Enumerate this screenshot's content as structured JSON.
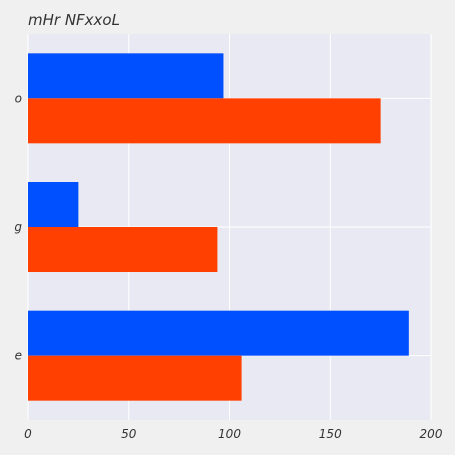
{
  "chart_data": {
    "type": "bar",
    "orientation": "horizontal",
    "title": "mHr NFxxoL",
    "xlabel": "",
    "ylabel": "",
    "categories": [
      "o",
      "g",
      "e"
    ],
    "series": [
      {
        "values": [
          97,
          25,
          189
        ],
        "color": "#0050ff"
      },
      {
        "values": [
          175,
          94,
          106
        ],
        "color": "#ff4000"
      }
    ],
    "xlim": [
      0,
      200
    ],
    "xticks": [
      0,
      50,
      100,
      150,
      200
    ],
    "grid": true,
    "legend": "none",
    "plot_background": "#e8e9f3",
    "page_background": "#f0f0f0",
    "grid_color": "#ffffff"
  }
}
